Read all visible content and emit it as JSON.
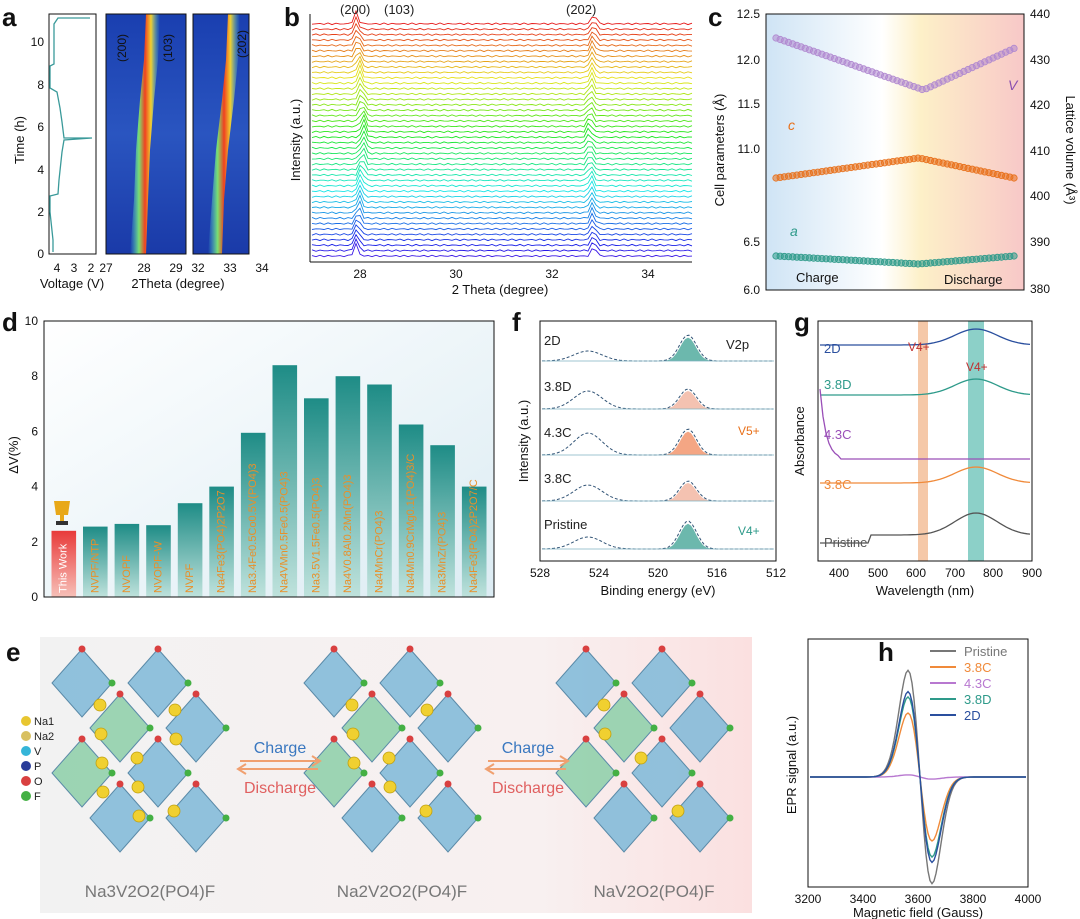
{
  "panel_labels": {
    "a": "a",
    "b": "b",
    "c": "c",
    "d": "d",
    "e": "e",
    "f": "f",
    "g": "g",
    "h": "h"
  },
  "panel_a": {
    "voltage_xlabel": "Voltage (V)",
    "voltage_ticks": [
      "4",
      "3",
      "2"
    ],
    "time_ylabel": "Time (h)",
    "time_ticks": [
      "0",
      "2",
      "4",
      "6",
      "8",
      "10"
    ],
    "map_xlabel": "2Theta (degree)",
    "map1_ticks": [
      "27",
      "28",
      "29"
    ],
    "map2_ticks": [
      "32",
      "33",
      "34"
    ],
    "peak_200": "(200)",
    "peak_103": "(103)",
    "peak_202": "(202)"
  },
  "panel_b": {
    "xlabel": "2 Theta (degree)",
    "ylabel": "Intensity (a.u.)",
    "xticks": [
      "28",
      "30",
      "32",
      "34"
    ],
    "peak_200": "(200)",
    "peak_103": "(103)",
    "peak_202": "(202)"
  },
  "panel_c": {
    "ylabel_left": "Cell parameters (Å)",
    "ylabel_right": "Lattice volume (Å³)",
    "left_ticks_top": [
      "12.5",
      "12.0",
      "11.5",
      "11.0"
    ],
    "left_ticks_bottom": [
      "6.5",
      "6.0"
    ],
    "right_ticks": [
      "440",
      "430",
      "420",
      "410",
      "400",
      "390",
      "380"
    ],
    "label_V": "V",
    "label_c": "c",
    "label_a": "a",
    "charge": "Charge",
    "discharge": "Discharge"
  },
  "panel_d": {
    "ylabel": "ΔV(%)",
    "yticks": [
      "0",
      "2",
      "4",
      "6",
      "8",
      "10"
    ],
    "chart_data": {
      "type": "bar",
      "ylim": [
        0,
        10
      ],
      "ylabel": "ΔV(%)",
      "categories": [
        "This Work",
        "NVPF/NTP",
        "NVOPF",
        "NVOPF-W",
        "NVPF",
        "Na4Fe3(PO4)2P2O7",
        "Na3.4Fe0.5Co0.5V(PO4)3",
        "Na4VMn0.5Fe0.5(PO4)3",
        "Na3.5V1.5Fe0.5(PO4)3",
        "Na4V0.8Al0.2Mn(PO4)3",
        "Na4MnCr(PO4)3",
        "Na4Mn0.9CrMg0.1(PO4)3/C",
        "Na3MnZr(PO4)3",
        "Na4Fe3(PO4)2P2O7/C"
      ],
      "values": [
        2.4,
        2.55,
        2.65,
        2.6,
        3.4,
        4.0,
        5.95,
        8.4,
        7.2,
        8.0,
        7.7,
        6.25,
        5.5,
        4.0
      ]
    }
  },
  "panel_e": {
    "legend": [
      "Na1",
      "Na2",
      "V",
      "P",
      "O",
      "F"
    ],
    "legend_colors": [
      "#e8c630",
      "#d8c060",
      "#35b5d8",
      "#2a3d9a",
      "#d94040",
      "#44b044"
    ],
    "charge": "Charge",
    "discharge": "Discharge",
    "formula1": "Na3V2O2(PO4)F",
    "formula2": "Na2V2O2(PO4)F",
    "formula3": "NaV2O2(PO4)F"
  },
  "panel_f": {
    "xlabel": "Binding energy (eV)",
    "ylabel": "Intensity (a.u.)",
    "xticks": [
      "528",
      "524",
      "520",
      "516",
      "512"
    ],
    "v2p": "V2p",
    "states": [
      "2D",
      "3.8D",
      "4.3C",
      "3.8C",
      "Pristine"
    ],
    "v5": "V5+",
    "v4": "V4+"
  },
  "panel_g": {
    "xlabel": "Wavelength (nm)",
    "ylabel": "Absorbance",
    "xticks": [
      "400",
      "500",
      "600",
      "700",
      "800",
      "900"
    ],
    "states": [
      "2D",
      "3.8D",
      "4.3C",
      "3.8C",
      "Pristine"
    ],
    "v4a": "V4+",
    "v4b": "V4+",
    "colors": [
      "#2a4f9e",
      "#2e9a8a",
      "#9a4fb8",
      "#f08a3a",
      "#555555"
    ]
  },
  "panel_h": {
    "xlabel": "Magnetic field (Gauss)",
    "ylabel": "EPR signal (a.u.)",
    "xticks": [
      "3200",
      "3400",
      "3600",
      "3800",
      "4000"
    ],
    "legend": [
      "Pristine",
      "3.8C",
      "4.3C",
      "3.8D",
      "2D"
    ],
    "colors": [
      "#777777",
      "#f08a3a",
      "#b878d0",
      "#2e9a8a",
      "#2a4f9e"
    ]
  }
}
